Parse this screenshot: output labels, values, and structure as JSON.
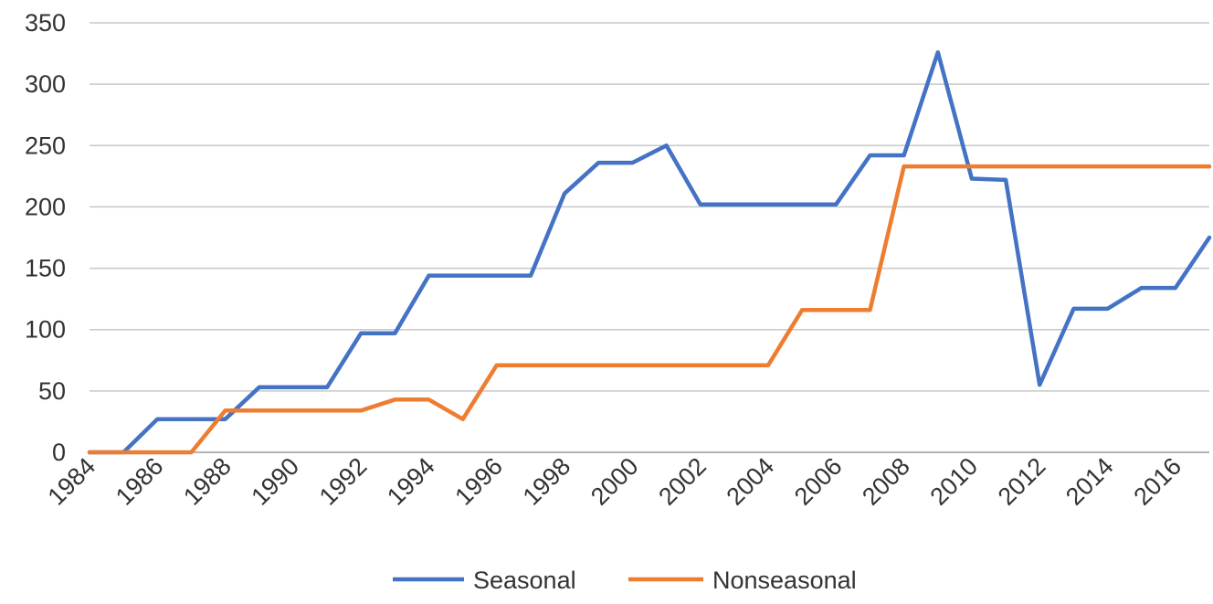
{
  "chart_data": {
    "type": "line",
    "title": "",
    "xlabel": "",
    "ylabel": "",
    "ylim": [
      0,
      350
    ],
    "yticks": [
      0,
      50,
      100,
      150,
      200,
      250,
      300,
      350
    ],
    "xlim": [
      1984,
      2017
    ],
    "xtick_labels": [
      "1984",
      "1986",
      "1988",
      "1990",
      "1992",
      "1994",
      "1996",
      "1998",
      "2000",
      "2002",
      "2004",
      "2006",
      "2008",
      "2010",
      "2012",
      "2014",
      "2016"
    ],
    "grid": true,
    "legend_position": "bottom",
    "x": [
      1984,
      1985,
      1986,
      1987,
      1988,
      1989,
      1990,
      1991,
      1992,
      1993,
      1994,
      1995,
      1996,
      1997,
      1998,
      1999,
      2000,
      2001,
      2002,
      2003,
      2004,
      2005,
      2006,
      2007,
      2008,
      2009,
      2010,
      2011,
      2012,
      2013,
      2014,
      2015,
      2016,
      2017
    ],
    "series": [
      {
        "name": "Seasonal",
        "color": "#4472c4",
        "values": [
          0,
          0,
          27,
          27,
          27,
          53,
          53,
          53,
          97,
          97,
          144,
          144,
          144,
          144,
          211,
          236,
          236,
          250,
          202,
          202,
          202,
          202,
          202,
          242,
          242,
          326,
          223,
          222,
          55,
          117,
          117,
          134,
          134,
          175
        ]
      },
      {
        "name": "Nonseasonal",
        "color": "#ed7d31",
        "values": [
          0,
          0,
          0,
          0,
          34,
          34,
          34,
          34,
          34,
          43,
          43,
          27,
          71,
          71,
          71,
          71,
          71,
          71,
          71,
          71,
          71,
          116,
          116,
          116,
          233,
          233,
          233,
          233,
          233,
          233,
          233,
          233,
          233,
          233
        ]
      }
    ]
  }
}
